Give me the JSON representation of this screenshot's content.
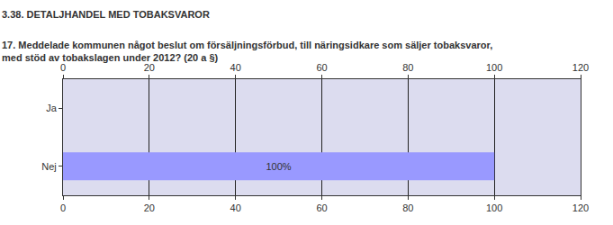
{
  "chart_data": {
    "type": "bar",
    "title": "3.38. DETALJHANDEL MED TOBAKSVAROR",
    "subtitle": "17. Meddelade kommunen något beslut om försäljningsförbud, till näringsidkare som säljer tobaksvaror, med stöd av tobakslagen under 2012? (20 a §)",
    "orientation": "horizontal",
    "categories": [
      "Ja",
      "Nej"
    ],
    "values": [
      0,
      100
    ],
    "value_labels": [
      null,
      "100%"
    ],
    "data_labels": true,
    "color": "#9999ff",
    "xlim": [
      0,
      120
    ],
    "xticks": [
      0,
      20,
      40,
      60,
      80,
      100,
      120
    ],
    "grid": true
  }
}
